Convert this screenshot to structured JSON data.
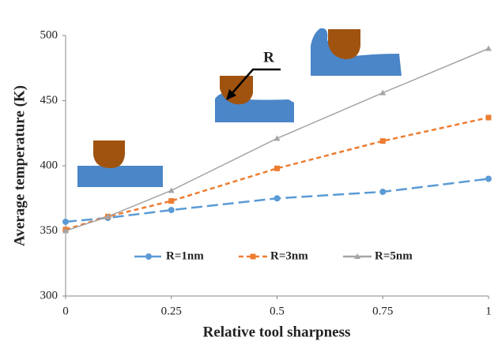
{
  "chart_data": {
    "type": "line",
    "x_label": "Relative tool sharpness",
    "y_label": "Average temperature (K)",
    "annotation": "R",
    "x": [
      0,
      0.1,
      0.25,
      0.5,
      0.75,
      1
    ],
    "series": [
      {
        "name": "R=1nm",
        "color": "#5b9bd5",
        "marker": "circle",
        "linestyle": "long-dash",
        "values": [
          357,
          360,
          366,
          375,
          380,
          390
        ]
      },
      {
        "name": "R=3nm",
        "color": "#ed7d31",
        "marker": "square",
        "linestyle": "dash",
        "values": [
          351,
          361,
          373,
          398,
          419,
          437
        ]
      },
      {
        "name": "R=5nm",
        "color": "#a5a5a5",
        "marker": "triangle",
        "linestyle": "solid",
        "values": [
          350,
          361,
          381,
          421,
          456,
          490
        ]
      }
    ],
    "xlim": [
      0,
      1
    ],
    "xticks": [
      0,
      0.25,
      0.5,
      0.75,
      1
    ],
    "ylim": [
      300,
      500
    ],
    "yticks": [
      300,
      350,
      400,
      450,
      500
    ],
    "grid": false
  }
}
